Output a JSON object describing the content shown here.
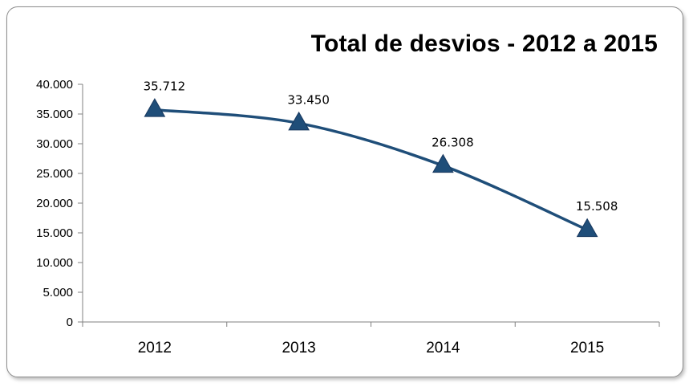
{
  "chart_data": {
    "type": "line",
    "title": "Total de desvios - 2012 a 2015",
    "xlabel": "",
    "ylabel": "",
    "categories": [
      "2012",
      "2013",
      "2014",
      "2015"
    ],
    "series": [
      {
        "values": [
          35712,
          33450,
          26308,
          15508
        ]
      }
    ],
    "data_labels": [
      "35.712",
      "33.450",
      "26.308",
      "15.508"
    ],
    "ylim": [
      0,
      40000
    ],
    "y_ticks": [
      0,
      5000,
      10000,
      15000,
      20000,
      25000,
      30000,
      35000,
      40000
    ],
    "y_tick_labels": [
      "0",
      "5.000",
      "10.000",
      "15.000",
      "20.000",
      "25.000",
      "30.000",
      "35.000",
      "40.000"
    ],
    "marker": "triangle",
    "line_color": "#1f4e79",
    "marker_color": "#1f4e79",
    "smooth": true,
    "grid": false,
    "legend": "none"
  }
}
